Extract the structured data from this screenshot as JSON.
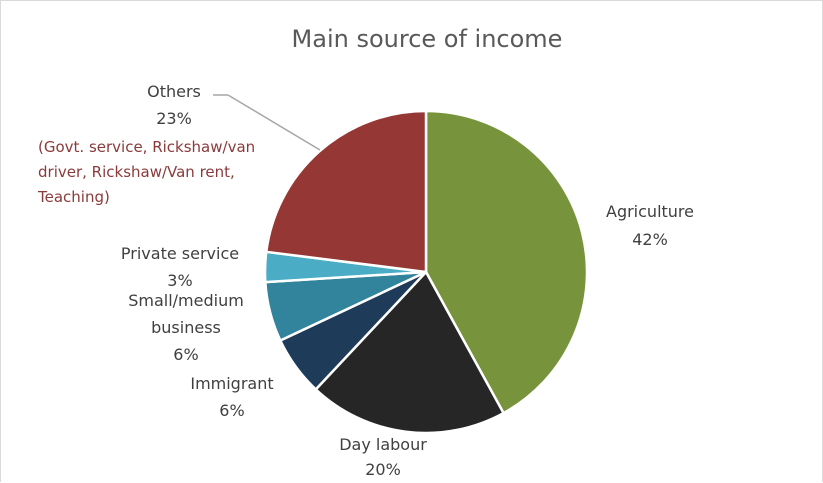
{
  "chart_data": {
    "type": "pie",
    "title": "Main source of income",
    "slices": [
      {
        "label": "Agriculture",
        "value": 42,
        "display": "42%",
        "color": "#77933c"
      },
      {
        "label": "Day labour",
        "value": 20,
        "display": "20%",
        "color": "#262626"
      },
      {
        "label": "Immigrant",
        "value": 6,
        "display": "6%",
        "color": "#1f3b5a"
      },
      {
        "label": "Small/medium business",
        "value": 6,
        "display": "6%",
        "color": "#31849b"
      },
      {
        "label": "Private service",
        "value": 3,
        "display": "3%",
        "color": "#4bacc6"
      },
      {
        "label": "Others",
        "value": 23,
        "display": "23%",
        "color": "#953735",
        "note": [
          "(Govt. service, Rickshaw/van",
          "driver, Rickshaw/Van rent,",
          "Teaching)"
        ]
      }
    ],
    "note_color": "#8b3a3a",
    "leader_color": "#a6a6a6",
    "label_color": "#404040"
  }
}
